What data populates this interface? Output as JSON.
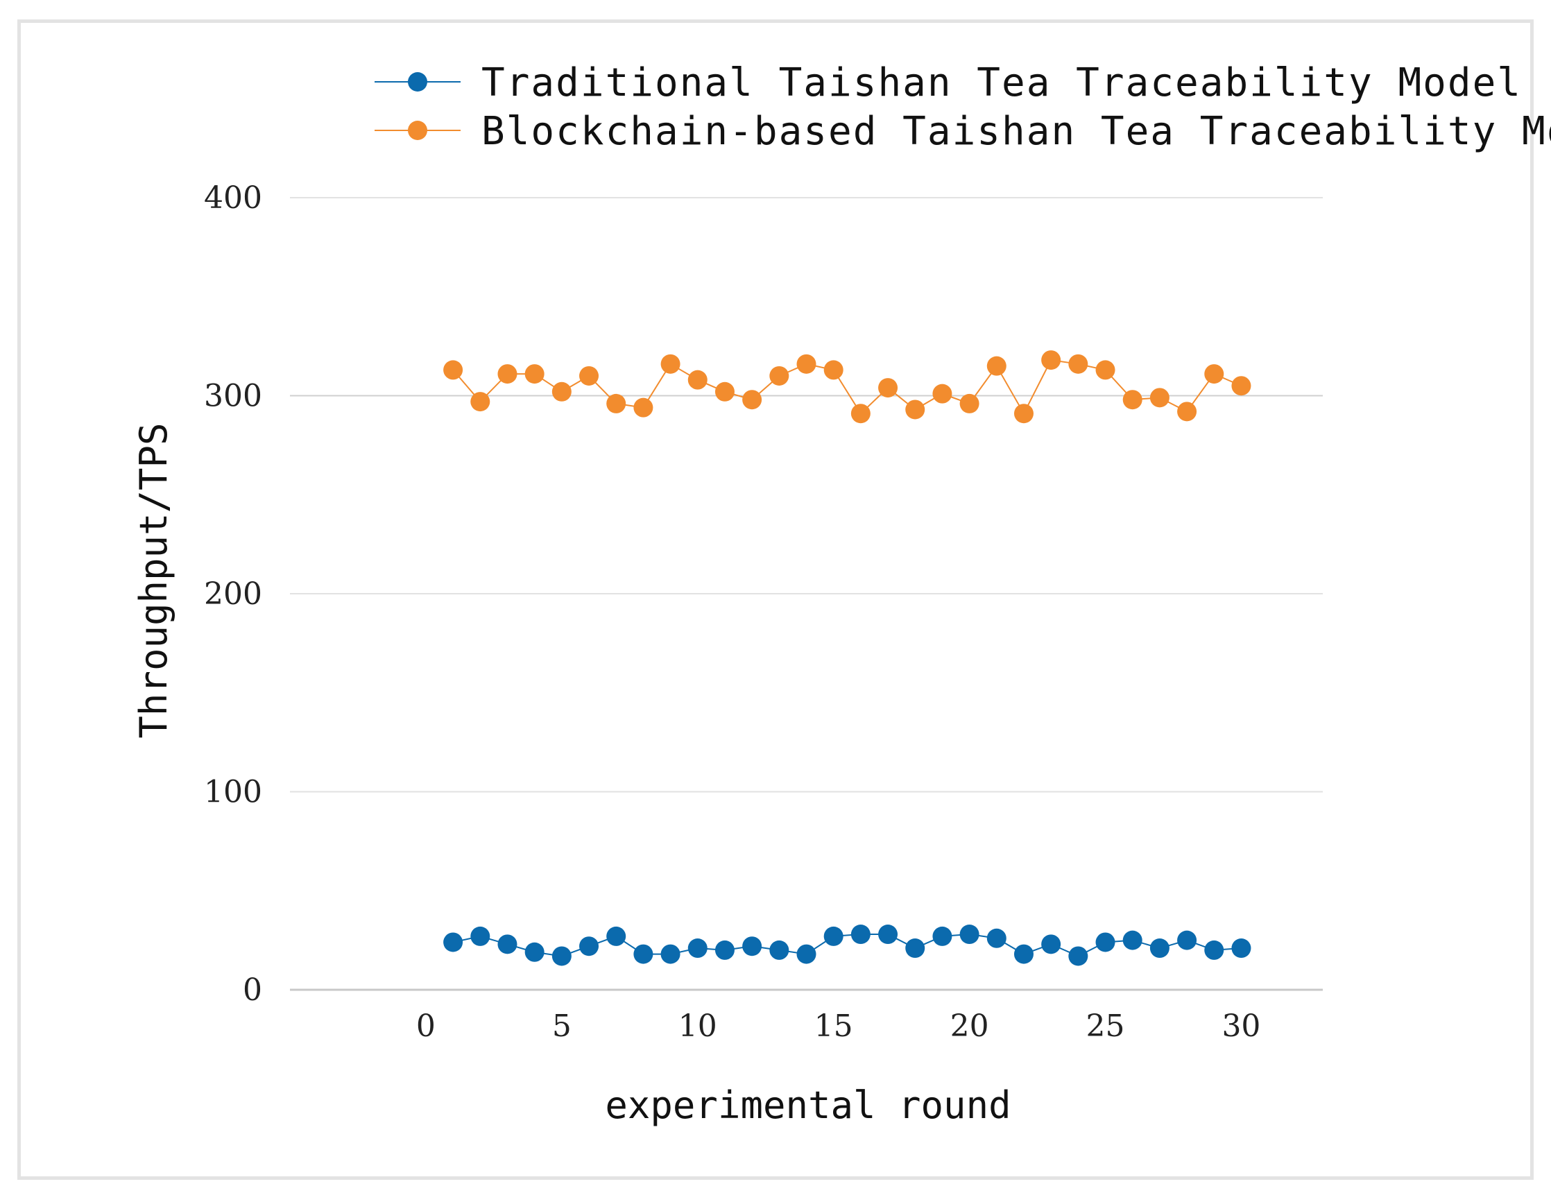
{
  "chart_data": {
    "type": "line",
    "title": "",
    "xlabel": "experimental round",
    "ylabel": "Throughput/TPS",
    "xlim": [
      -5,
      33
    ],
    "ylim": [
      0,
      400
    ],
    "x_ticks": [
      0,
      5,
      10,
      15,
      20,
      25,
      30
    ],
    "y_ticks": [
      0,
      100,
      200,
      300,
      400
    ],
    "grid": true,
    "legend_position": "top",
    "x": [
      1,
      2,
      3,
      4,
      5,
      6,
      7,
      8,
      9,
      10,
      11,
      12,
      13,
      14,
      15,
      16,
      17,
      18,
      19,
      20,
      21,
      22,
      23,
      24,
      25,
      26,
      27,
      28,
      29,
      30
    ],
    "series": [
      {
        "name": "Traditional Taishan Tea Traceability Model",
        "color": "#0b6aad",
        "values": [
          24,
          27,
          23,
          19,
          17,
          22,
          27,
          18,
          18,
          21,
          20,
          22,
          20,
          18,
          27,
          28,
          28,
          21,
          27,
          28,
          26,
          18,
          23,
          17,
          24,
          25,
          21,
          25,
          20,
          21
        ]
      },
      {
        "name": "Blockchain-based Taishan Tea Traceability Model",
        "color": "#f28c2e",
        "values": [
          313,
          297,
          311,
          311,
          302,
          310,
          296,
          294,
          316,
          308,
          302,
          298,
          310,
          316,
          313,
          291,
          304,
          293,
          301,
          296,
          315,
          291,
          318,
          316,
          313,
          298,
          299,
          292,
          311,
          305
        ]
      }
    ]
  }
}
